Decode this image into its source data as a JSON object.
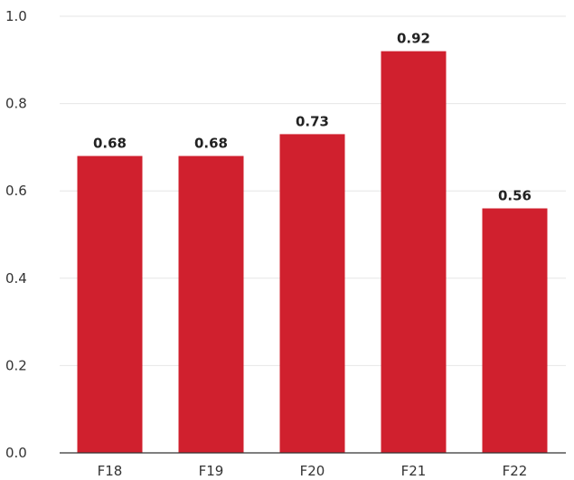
{
  "chart_data": {
    "type": "bar",
    "categories": [
      "F18",
      "F19",
      "F20",
      "F21",
      "F22"
    ],
    "values": [
      0.68,
      0.68,
      0.73,
      0.92,
      0.56
    ],
    "value_labels": [
      "0.68",
      "0.68",
      "0.73",
      "0.92",
      "0.56"
    ],
    "title": "",
    "xlabel": "",
    "ylabel": "",
    "ylim": [
      0,
      1.0
    ],
    "yticks": [
      0.0,
      0.2,
      0.4,
      0.6,
      0.8,
      1.0
    ],
    "ytick_labels": [
      "0.0",
      "0.2",
      "0.4",
      "0.6",
      "0.8",
      "1.0"
    ],
    "grid": true,
    "legend": "none",
    "bar_color": "#d0202e",
    "grid_color": "#e6e6e6",
    "axis_color": "#333333"
  }
}
